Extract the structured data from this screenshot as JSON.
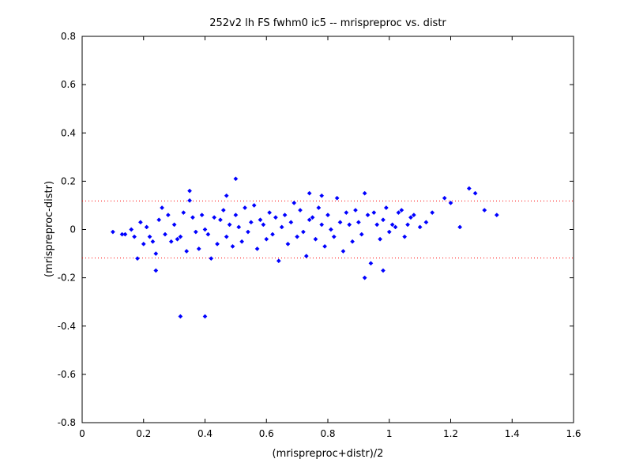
{
  "chart_data": {
    "type": "scatter",
    "title": "252v2 lh FS fwhm0 ic5 -- mrispreproc vs. distr",
    "xlabel": "(mrispreproc+distr)/2",
    "ylabel": "(mrispreproc-distr)",
    "xlim": [
      0,
      1.6
    ],
    "ylim": [
      -0.8,
      0.8
    ],
    "xticks": [
      "0",
      "0.2",
      "0.4",
      "0.6",
      "0.8",
      "1",
      "1.2",
      "1.4",
      "1.6"
    ],
    "yticks": [
      "-0.8",
      "-0.6",
      "-0.4",
      "-0.2",
      "0",
      "0.2",
      "0.4",
      "0.6",
      "0.8"
    ],
    "grid": false,
    "marker_color": "#0000ff",
    "reference_line_color": "#ff0000",
    "reference_lines_y": [
      0.118,
      -0.118
    ],
    "series": [
      {
        "x": [
          0.1,
          0.13,
          0.14,
          0.16,
          0.17,
          0.18,
          0.19,
          0.2,
          0.21,
          0.22,
          0.23,
          0.24,
          0.25,
          0.26,
          0.27,
          0.28,
          0.29,
          0.3,
          0.31,
          0.32,
          0.33,
          0.34,
          0.35,
          0.36,
          0.37,
          0.38,
          0.39,
          0.4,
          0.41,
          0.42,
          0.43,
          0.44,
          0.45,
          0.46,
          0.47,
          0.48,
          0.49,
          0.5,
          0.51,
          0.52,
          0.53,
          0.54,
          0.55,
          0.56,
          0.57,
          0.58,
          0.59,
          0.6,
          0.61,
          0.62,
          0.63,
          0.64,
          0.65,
          0.66,
          0.67,
          0.68,
          0.69,
          0.7,
          0.71,
          0.72,
          0.73,
          0.74,
          0.75,
          0.76,
          0.77,
          0.78,
          0.79,
          0.8,
          0.81,
          0.82,
          0.83,
          0.84,
          0.85,
          0.86,
          0.87,
          0.88,
          0.89,
          0.9,
          0.91,
          0.92,
          0.93,
          0.94,
          0.95,
          0.96,
          0.97,
          0.98,
          0.99,
          1.0,
          1.01,
          1.02,
          1.03,
          1.04,
          1.05,
          1.06,
          1.07,
          1.08,
          1.1,
          1.12,
          1.14,
          1.18,
          1.2,
          1.23,
          1.26,
          1.28,
          1.31,
          1.35,
          0.32,
          0.4,
          0.5,
          0.35,
          0.47,
          0.74,
          0.92,
          0.24,
          0.78,
          0.98
        ],
        "y": [
          -0.01,
          -0.02,
          -0.02,
          0.0,
          -0.03,
          -0.12,
          0.03,
          -0.06,
          0.01,
          -0.03,
          -0.05,
          -0.1,
          0.04,
          0.09,
          -0.02,
          0.06,
          -0.05,
          0.02,
          -0.04,
          -0.03,
          0.07,
          -0.09,
          0.12,
          0.05,
          -0.01,
          -0.08,
          0.06,
          0.0,
          -0.02,
          -0.12,
          0.05,
          -0.06,
          0.04,
          0.08,
          -0.03,
          0.02,
          -0.07,
          0.06,
          0.01,
          -0.05,
          0.09,
          -0.01,
          0.03,
          0.1,
          -0.08,
          0.04,
          0.02,
          -0.04,
          0.07,
          -0.02,
          0.05,
          -0.13,
          0.01,
          0.06,
          -0.06,
          0.03,
          0.11,
          -0.03,
          0.08,
          -0.01,
          -0.11,
          0.04,
          0.05,
          -0.04,
          0.09,
          0.02,
          -0.07,
          0.06,
          0.0,
          -0.03,
          0.13,
          0.03,
          -0.09,
          0.07,
          0.02,
          -0.05,
          0.08,
          0.03,
          -0.02,
          0.15,
          0.06,
          -0.14,
          0.07,
          0.02,
          -0.04,
          0.04,
          0.09,
          -0.01,
          0.02,
          0.01,
          0.07,
          0.08,
          -0.03,
          0.02,
          0.05,
          0.06,
          0.01,
          0.03,
          0.07,
          0.13,
          0.11,
          0.01,
          0.17,
          0.15,
          0.08,
          0.06,
          -0.36,
          -0.36,
          0.21,
          0.16,
          0.14,
          0.15,
          -0.2,
          -0.17,
          0.14,
          -0.17
        ]
      }
    ]
  }
}
